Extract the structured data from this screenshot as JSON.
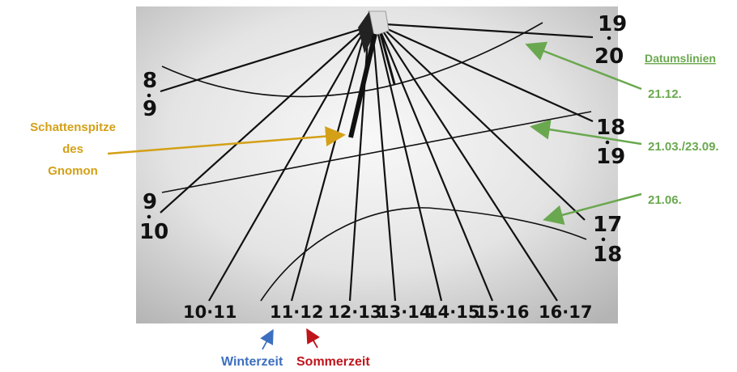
{
  "colors": {
    "plate_center": "#f7f7f7",
    "plate_edge": "#bdbdbd",
    "ink": "#111111",
    "shadow_label": "#d4a017",
    "date_label": "#6aa84f",
    "winter": "#3d6fc0",
    "summer": "#c0141b"
  },
  "hour_labels": {
    "left": [
      {
        "top": "8",
        "bottom": "9"
      },
      {
        "top": "9",
        "bottom": "10"
      }
    ],
    "right": [
      {
        "top": "19",
        "bottom": "20"
      },
      {
        "top": "18",
        "bottom": "19"
      },
      {
        "top": "17",
        "bottom": "18"
      }
    ],
    "bottom": [
      "10·11",
      "11·12",
      "12·13",
      "13·14",
      "14·15",
      "15·16",
      "16·17"
    ]
  },
  "annotations": {
    "shadow_tip": [
      "Schattenspitze",
      "des",
      "Gnomon"
    ],
    "date_lines_title": "Datumslinien",
    "dates": [
      "21.12.",
      "21.03./23.09.",
      "21.06."
    ],
    "winter_time": "Winterzeit",
    "summer_time": "Sommerzeit"
  },
  "icons": {
    "gnomon": "gnomon-icon",
    "arrows": "arrow-icon"
  }
}
